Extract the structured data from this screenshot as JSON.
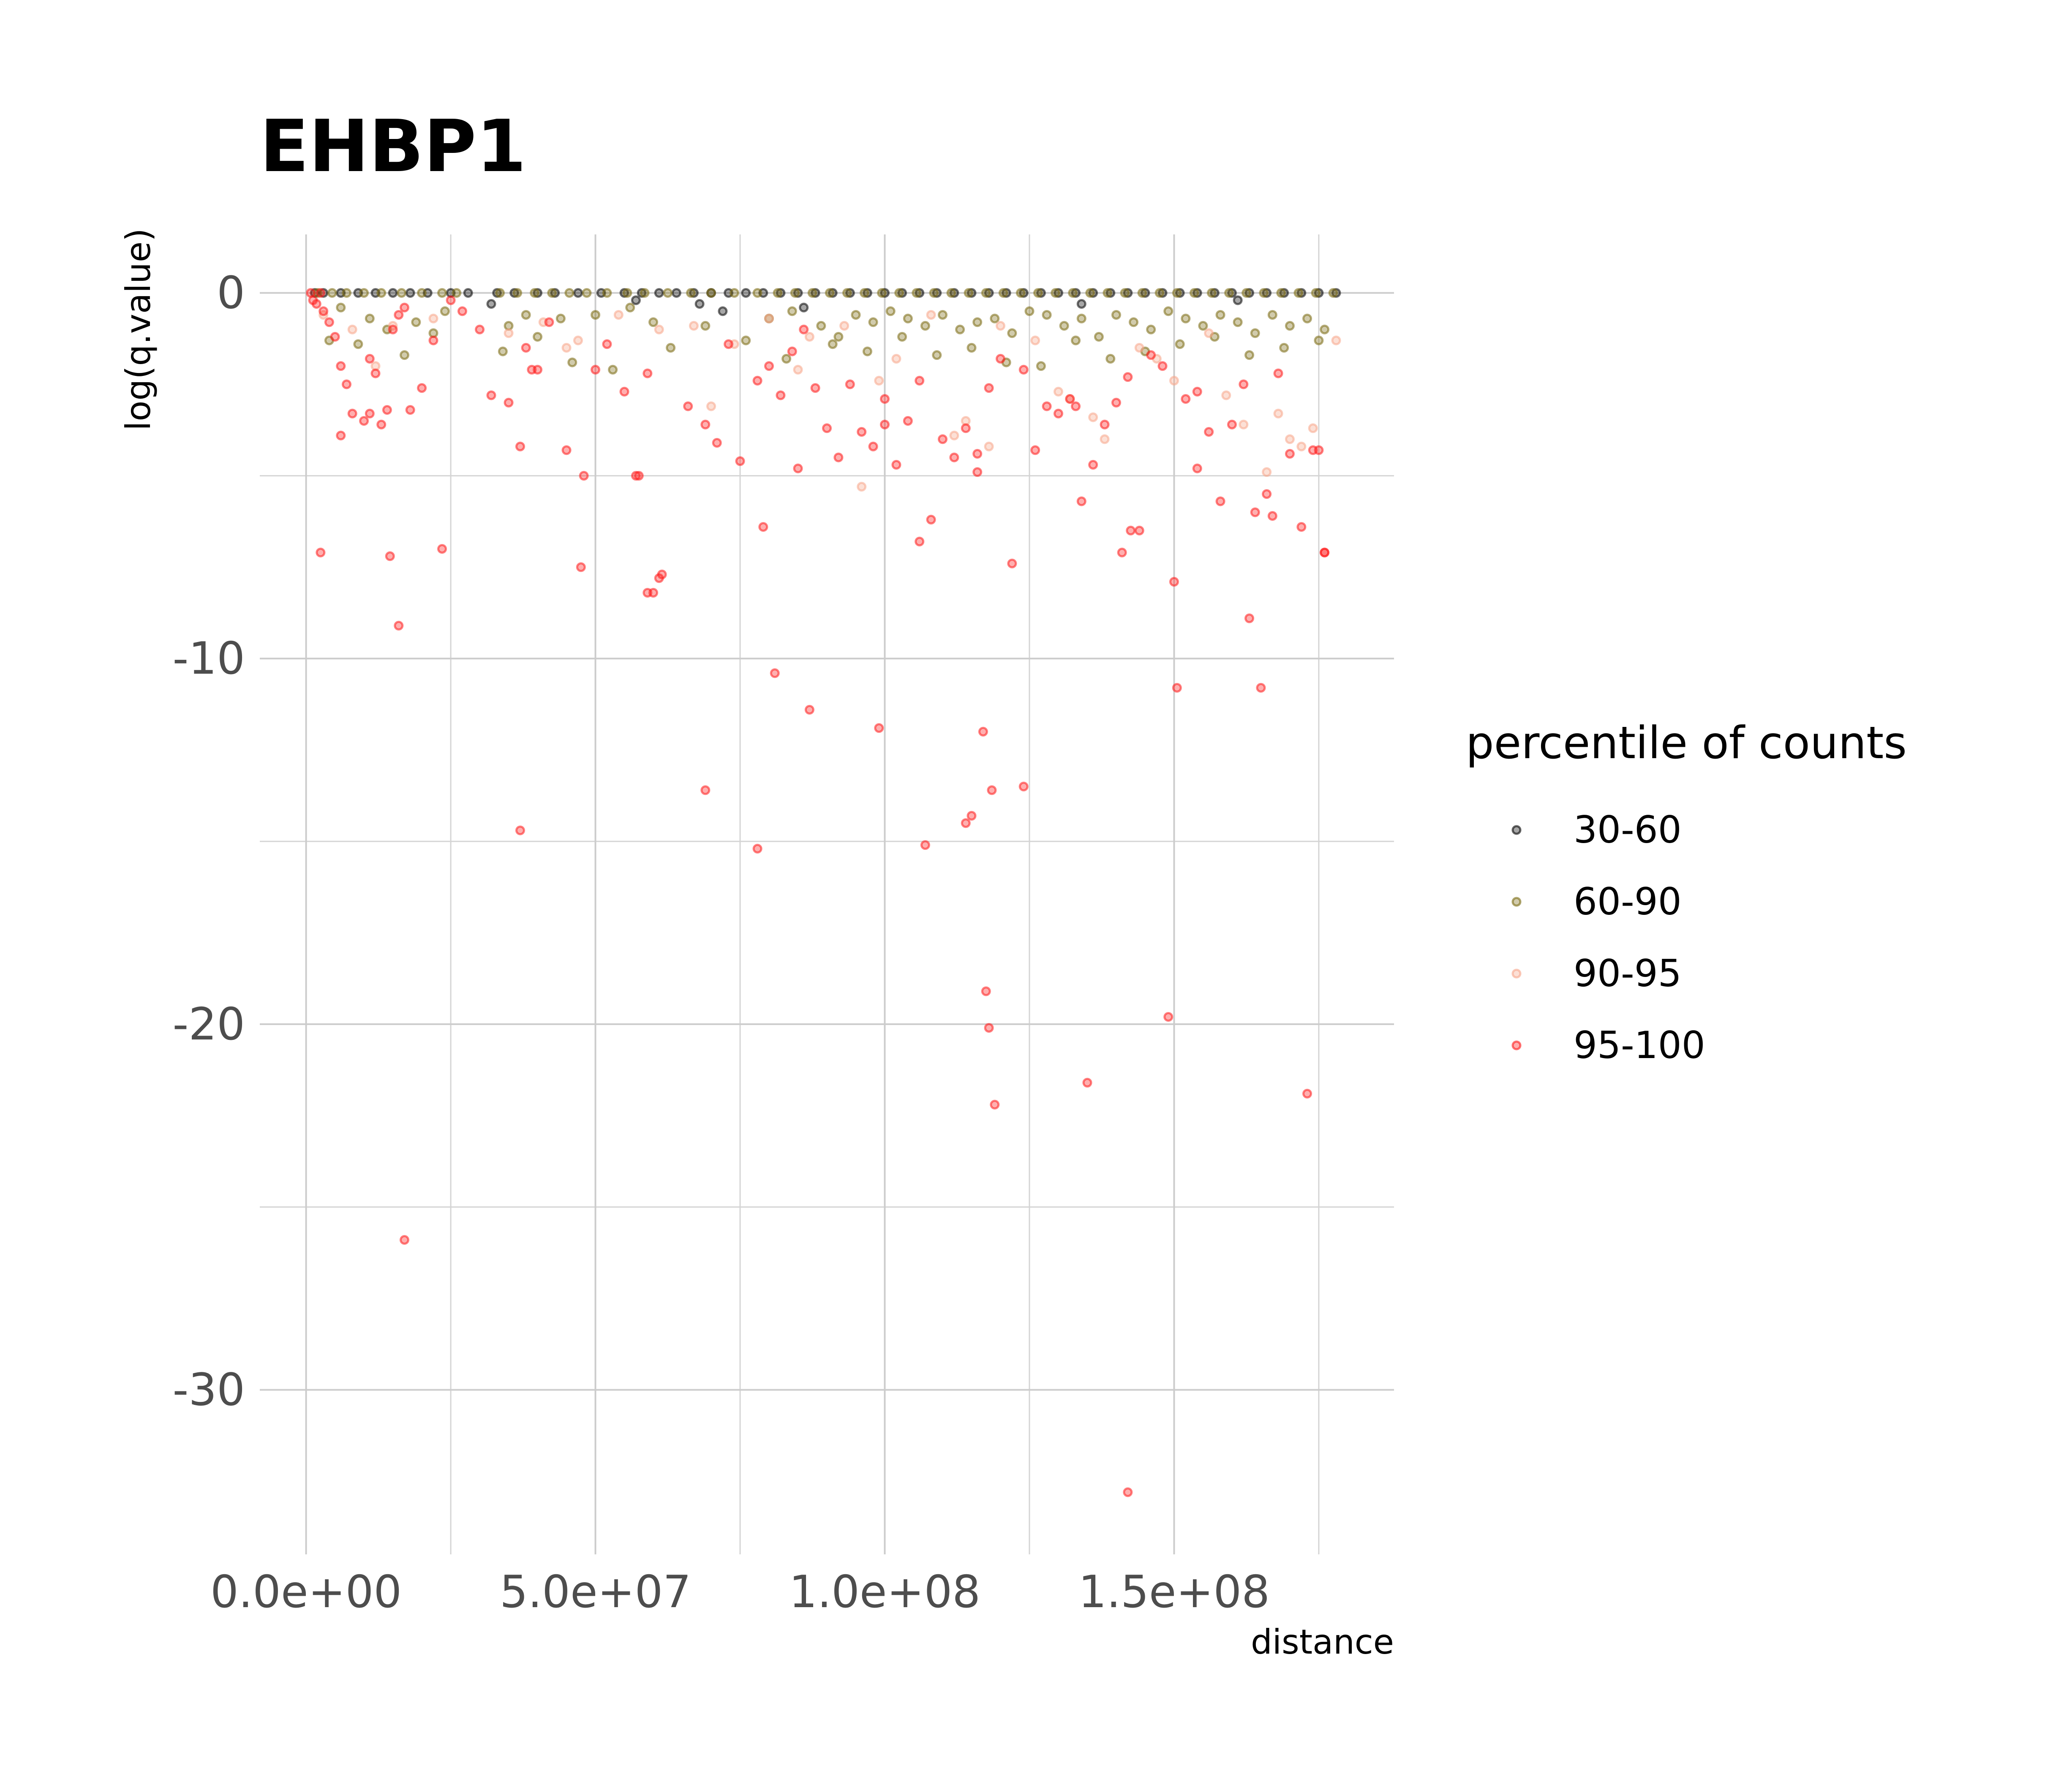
{
  "chart_data": {
    "type": "scatter",
    "title": "EHBP1",
    "xlabel": "distance",
    "ylabel": "log(q.value)",
    "xlim": [
      -8000000,
      188000000
    ],
    "ylim": [
      -34.5,
      1.6
    ],
    "x_ticks": [
      0,
      50000000,
      100000000,
      150000000
    ],
    "x_tick_labels": [
      "0.0e+00",
      "5.0e+07",
      "1.0e+08",
      "1.5e+08"
    ],
    "x_minor_ticks": [
      25000000,
      75000000,
      125000000,
      175000000
    ],
    "y_ticks": [
      0,
      -10,
      -20,
      -30
    ],
    "y_tick_labels": [
      "0",
      "-10",
      "-20",
      "-30"
    ],
    "y_minor_ticks": [
      -5,
      -15,
      -25
    ],
    "grid": true,
    "legend": {
      "title": "percentile of counts",
      "position": "right"
    },
    "series": [
      {
        "name": "30-60",
        "color": "#000000",
        "x": [
          1500000,
          3000000,
          6000000,
          9000000,
          12000000,
          15000000,
          18000000,
          21000000,
          25000000,
          28000000,
          33000000,
          36000000,
          40000000,
          43000000,
          47000000,
          51000000,
          55000000,
          58000000,
          61000000,
          64000000,
          67000000,
          70000000,
          73000000,
          76000000,
          79000000,
          82000000,
          85000000,
          88000000,
          91000000,
          94000000,
          97000000,
          100000000,
          103000000,
          106000000,
          109000000,
          112000000,
          115000000,
          118000000,
          121000000,
          124000000,
          127000000,
          130000000,
          133000000,
          136000000,
          139000000,
          142000000,
          145000000,
          148000000,
          151000000,
          154000000,
          157000000,
          160000000,
          163000000,
          166000000,
          169000000,
          172000000,
          175000000,
          178000000,
          32000000,
          57000000,
          68000000,
          72000000,
          86000000,
          134000000,
          161000000
        ],
        "values": [
          0,
          0,
          0,
          0,
          0,
          0,
          0,
          0,
          0,
          0,
          0,
          0,
          0,
          0,
          0,
          0,
          0,
          0,
          0,
          0,
          0,
          0,
          0,
          0,
          0,
          0,
          0,
          0,
          0,
          0,
          0,
          0,
          0,
          0,
          0,
          0,
          0,
          0,
          0,
          0,
          0,
          0,
          0,
          0,
          0,
          0,
          0,
          0,
          0,
          0,
          0,
          0,
          0,
          0,
          0,
          0,
          0,
          0,
          -0.3,
          -0.2,
          -0.3,
          -0.5,
          -0.4,
          -0.3,
          -0.2
        ]
      },
      {
        "name": "60-90",
        "color": "#7a6a10",
        "x": [
          2000000,
          4500000,
          7000000,
          10000000,
          13000000,
          16500000,
          20000000,
          23500000,
          26000000,
          33500000,
          36500000,
          39500000,
          42500000,
          45500000,
          48500000,
          52000000,
          55500000,
          58500000,
          62500000,
          66500000,
          70000000,
          74000000,
          78000000,
          81500000,
          84500000,
          87500000,
          90500000,
          93500000,
          96500000,
          99500000,
          102500000,
          105500000,
          108500000,
          111500000,
          114500000,
          117500000,
          120500000,
          123500000,
          126500000,
          129500000,
          132500000,
          135500000,
          138500000,
          141500000,
          144500000,
          147500000,
          150500000,
          153500000,
          156500000,
          159500000,
          162500000,
          165500000,
          168500000,
          171500000,
          174500000,
          177500000,
          6000000,
          11000000,
          14000000,
          19000000,
          24000000,
          35000000,
          38000000,
          44000000,
          50000000,
          56000000,
          60000000,
          69000000,
          80000000,
          84000000,
          89000000,
          92000000,
          95000000,
          98000000,
          101000000,
          104000000,
          107000000,
          110000000,
          113000000,
          116000000,
          119000000,
          122000000,
          125000000,
          128000000,
          131000000,
          134000000,
          137000000,
          140000000,
          143000000,
          146000000,
          149000000,
          152000000,
          155000000,
          158000000,
          161000000,
          164000000,
          167000000,
          170000000,
          173000000,
          176000000,
          4000000,
          9000000,
          17000000,
          22000000,
          34000000,
          40000000,
          46000000,
          53000000,
          63000000,
          76000000,
          83000000,
          91000000,
          97000000,
          103000000,
          109000000,
          115000000,
          121000000,
          127000000,
          133000000,
          139000000,
          145000000,
          151000000,
          157000000,
          163000000,
          169000000,
          175000000
        ],
        "values": [
          0,
          0,
          0,
          0,
          0,
          0,
          0,
          0,
          0,
          0,
          0,
          0,
          0,
          0,
          0,
          0,
          0,
          0,
          0,
          0,
          0,
          0,
          0,
          0,
          0,
          0,
          0,
          0,
          0,
          0,
          0,
          0,
          0,
          0,
          0,
          0,
          0,
          0,
          0,
          0,
          0,
          0,
          0,
          0,
          0,
          0,
          0,
          0,
          0,
          0,
          0,
          0,
          0,
          0,
          0,
          0,
          -0.4,
          -0.7,
          -1.0,
          -0.8,
          -0.5,
          -0.9,
          -0.6,
          -0.7,
          -0.6,
          -0.4,
          -0.8,
          -0.9,
          -0.7,
          -0.5,
          -0.9,
          -1.2,
          -0.6,
          -0.8,
          -0.5,
          -0.7,
          -0.9,
          -0.6,
          -1.0,
          -0.8,
          -0.7,
          -1.1,
          -0.5,
          -0.6,
          -0.9,
          -0.7,
          -1.2,
          -0.6,
          -0.8,
          -1.0,
          -0.5,
          -0.7,
          -0.9,
          -0.6,
          -0.8,
          -1.1,
          -0.6,
          -0.9,
          -0.7,
          -1.0,
          -1.3,
          -1.4,
          -1.7,
          -1.1,
          -1.6,
          -1.2,
          -1.9,
          -2.1,
          -1.5,
          -1.3,
          -1.8,
          -1.4,
          -1.6,
          -1.2,
          -1.7,
          -1.5,
          -1.9,
          -2.0,
          -1.3,
          -1.8,
          -1.6,
          -1.4,
          -1.2,
          -1.7,
          -1.5,
          -1.3
        ]
      },
      {
        "name": "90-95",
        "color": "#f7a58a",
        "x": [
          3000000,
          8000000,
          15000000,
          22000000,
          35000000,
          41000000,
          47000000,
          54000000,
          61000000,
          67000000,
          74000000,
          80000000,
          87000000,
          93000000,
          96000000,
          102000000,
          108000000,
          114000000,
          120000000,
          126000000,
          132000000,
          138000000,
          144000000,
          150000000,
          156000000,
          162000000,
          168000000,
          174000000,
          12000000,
          45000000,
          70000000,
          85000000,
          99000000,
          112000000,
          118000000,
          130000000,
          136000000,
          147000000,
          159000000,
          166000000,
          170000000,
          172000000,
          178000000
        ],
        "values": [
          -0.6,
          -1.0,
          -0.9,
          -0.7,
          -1.1,
          -0.8,
          -1.3,
          -0.6,
          -1.0,
          -0.9,
          -1.4,
          -0.7,
          -1.2,
          -0.9,
          -5.3,
          -1.8,
          -0.6,
          -3.5,
          -0.9,
          -1.3,
          -2.9,
          -4.0,
          -1.5,
          -2.4,
          -1.1,
          -3.6,
          -3.3,
          -3.7,
          -2.0,
          -1.5,
          -3.1,
          -2.1,
          -2.4,
          -3.9,
          -4.2,
          -2.7,
          -3.4,
          -1.8,
          -2.8,
          -4.9,
          -4.0,
          -4.2,
          -1.3
        ]
      },
      {
        "name": "95-100",
        "color": "#ff1a1a",
        "x": [
          800000,
          1200000,
          1800000,
          2500000,
          3000000,
          4000000,
          5000000,
          6000000,
          7000000,
          8000000,
          10000000,
          11000000,
          12000000,
          13000000,
          14000000,
          15000000,
          16000000,
          17000000,
          18000000,
          20000000,
          22000000,
          25000000,
          27000000,
          30000000,
          32000000,
          35000000,
          37000000,
          38000000,
          40000000,
          42000000,
          45000000,
          48000000,
          50000000,
          52000000,
          55000000,
          57000000,
          59000000,
          61000000,
          66000000,
          69000000,
          71000000,
          73000000,
          75000000,
          78000000,
          80000000,
          82000000,
          84000000,
          86000000,
          88000000,
          90000000,
          92000000,
          94000000,
          96000000,
          98000000,
          100000000,
          102000000,
          104000000,
          106000000,
          108000000,
          110000000,
          112000000,
          114000000,
          116000000,
          118000000,
          120000000,
          122000000,
          124000000,
          126000000,
          128000000,
          130000000,
          132000000,
          134000000,
          136000000,
          138000000,
          140000000,
          142000000,
          144000000,
          146000000,
          148000000,
          150000000,
          152000000,
          154000000,
          156000000,
          158000000,
          160000000,
          162000000,
          164000000,
          166000000,
          168000000,
          170000000,
          172000000,
          174000000,
          176000000,
          2500000,
          14500000,
          16000000,
          23500000,
          37000000,
          47500000,
          57500000,
          59000000,
          61500000,
          69000000,
          78000000,
          81000000,
          87000000,
          99000000,
          107000000,
          114000000,
          115000000,
          117500000,
          118000000,
          118500000,
          119000000,
          117000000,
          124000000,
          135000000,
          142500000,
          149000000,
          150500000,
          165000000,
          173000000,
          6000000,
          11000000,
          39000000,
          60000000,
          79000000,
          85000000,
          100000000,
          106000000,
          116000000,
          133000000,
          141000000,
          154000000,
          163000000,
          167000000,
          175000000,
          176000000
        ],
        "values": [
          0,
          -0.2,
          -0.3,
          0,
          -0.5,
          -0.8,
          -1.2,
          -2.0,
          -2.5,
          -3.3,
          -3.5,
          -1.8,
          -2.2,
          -3.6,
          -3.2,
          -1.0,
          -0.6,
          -0.4,
          -3.2,
          -2.6,
          -1.3,
          -0.2,
          -0.5,
          -1.0,
          -2.8,
          -3.0,
          -4.2,
          -1.5,
          -2.1,
          -0.8,
          -4.3,
          -5.0,
          -2.1,
          -1.4,
          -2.7,
          -5.0,
          -2.2,
          -7.8,
          -3.1,
          -3.6,
          -4.1,
          -1.4,
          -4.6,
          -2.4,
          -2.0,
          -2.8,
          -1.6,
          -1.0,
          -2.6,
          -3.7,
          -4.5,
          -2.5,
          -3.8,
          -4.2,
          -3.6,
          -4.7,
          -3.5,
          -2.4,
          -6.2,
          -4.0,
          -4.5,
          -3.7,
          -4.9,
          -2.6,
          -1.8,
          -7.4,
          -2.1,
          -4.3,
          -3.1,
          -3.3,
          -2.9,
          -5.7,
          -4.7,
          -3.6,
          -3.0,
          -2.3,
          -6.5,
          -1.7,
          -2.0,
          -7.9,
          -2.9,
          -4.8,
          -3.8,
          -5.7,
          -3.6,
          -2.5,
          -6.0,
          -5.5,
          -2.2,
          -4.4,
          -6.4,
          -4.3,
          -7.1,
          -7.1,
          -7.2,
          -9.1,
          -7.0,
          -14.7,
          -7.5,
          -5.0,
          -8.2,
          -7.7,
          -13.6,
          -15.2,
          -10.4,
          -11.4,
          -11.9,
          -15.1,
          -14.5,
          -14.3,
          -19.1,
          -20.1,
          -13.6,
          -22.2,
          -12.0,
          -13.5,
          -21.6,
          -6.5,
          -19.8,
          -10.8,
          -10.8,
          -21.9,
          -3.9,
          -3.3,
          -2.1,
          -8.2,
          -6.4,
          -4.8,
          -2.9,
          -6.8,
          -4.4,
          -3.1,
          -7.1,
          -2.7,
          -8.9,
          -6.1,
          -4.3,
          -7.1
        ]
      }
    ],
    "extra_points": [
      {
        "series": "95-100",
        "x": 17000000,
        "y": -25.9
      },
      {
        "series": "95-100",
        "x": 142000000,
        "y": -32.8
      }
    ]
  }
}
